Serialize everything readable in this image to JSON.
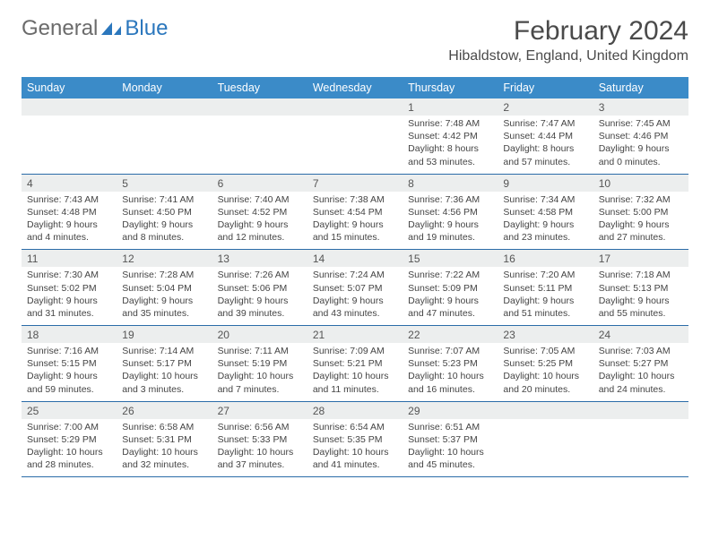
{
  "colors": {
    "header_bg": "#3b8bc8",
    "header_text": "#ffffff",
    "daynum_bg": "#eceeee",
    "border": "#2b6ca8",
    "logo_gray": "#6b6b6b",
    "logo_blue": "#2b77bd"
  },
  "logo": {
    "general": "General",
    "blue": "Blue"
  },
  "title": {
    "month": "February 2024",
    "location": "Hibaldstow, England, United Kingdom"
  },
  "daynames": [
    "Sunday",
    "Monday",
    "Tuesday",
    "Wednesday",
    "Thursday",
    "Friday",
    "Saturday"
  ],
  "weeks": [
    {
      "nums": [
        "",
        "",
        "",
        "",
        "1",
        "2",
        "3"
      ],
      "cells": [
        null,
        null,
        null,
        null,
        {
          "sunrise": "Sunrise: 7:48 AM",
          "sunset": "Sunset: 4:42 PM",
          "day1": "Daylight: 8 hours",
          "day2": "and 53 minutes."
        },
        {
          "sunrise": "Sunrise: 7:47 AM",
          "sunset": "Sunset: 4:44 PM",
          "day1": "Daylight: 8 hours",
          "day2": "and 57 minutes."
        },
        {
          "sunrise": "Sunrise: 7:45 AM",
          "sunset": "Sunset: 4:46 PM",
          "day1": "Daylight: 9 hours",
          "day2": "and 0 minutes."
        }
      ]
    },
    {
      "nums": [
        "4",
        "5",
        "6",
        "7",
        "8",
        "9",
        "10"
      ],
      "cells": [
        {
          "sunrise": "Sunrise: 7:43 AM",
          "sunset": "Sunset: 4:48 PM",
          "day1": "Daylight: 9 hours",
          "day2": "and 4 minutes."
        },
        {
          "sunrise": "Sunrise: 7:41 AM",
          "sunset": "Sunset: 4:50 PM",
          "day1": "Daylight: 9 hours",
          "day2": "and 8 minutes."
        },
        {
          "sunrise": "Sunrise: 7:40 AM",
          "sunset": "Sunset: 4:52 PM",
          "day1": "Daylight: 9 hours",
          "day2": "and 12 minutes."
        },
        {
          "sunrise": "Sunrise: 7:38 AM",
          "sunset": "Sunset: 4:54 PM",
          "day1": "Daylight: 9 hours",
          "day2": "and 15 minutes."
        },
        {
          "sunrise": "Sunrise: 7:36 AM",
          "sunset": "Sunset: 4:56 PM",
          "day1": "Daylight: 9 hours",
          "day2": "and 19 minutes."
        },
        {
          "sunrise": "Sunrise: 7:34 AM",
          "sunset": "Sunset: 4:58 PM",
          "day1": "Daylight: 9 hours",
          "day2": "and 23 minutes."
        },
        {
          "sunrise": "Sunrise: 7:32 AM",
          "sunset": "Sunset: 5:00 PM",
          "day1": "Daylight: 9 hours",
          "day2": "and 27 minutes."
        }
      ]
    },
    {
      "nums": [
        "11",
        "12",
        "13",
        "14",
        "15",
        "16",
        "17"
      ],
      "cells": [
        {
          "sunrise": "Sunrise: 7:30 AM",
          "sunset": "Sunset: 5:02 PM",
          "day1": "Daylight: 9 hours",
          "day2": "and 31 minutes."
        },
        {
          "sunrise": "Sunrise: 7:28 AM",
          "sunset": "Sunset: 5:04 PM",
          "day1": "Daylight: 9 hours",
          "day2": "and 35 minutes."
        },
        {
          "sunrise": "Sunrise: 7:26 AM",
          "sunset": "Sunset: 5:06 PM",
          "day1": "Daylight: 9 hours",
          "day2": "and 39 minutes."
        },
        {
          "sunrise": "Sunrise: 7:24 AM",
          "sunset": "Sunset: 5:07 PM",
          "day1": "Daylight: 9 hours",
          "day2": "and 43 minutes."
        },
        {
          "sunrise": "Sunrise: 7:22 AM",
          "sunset": "Sunset: 5:09 PM",
          "day1": "Daylight: 9 hours",
          "day2": "and 47 minutes."
        },
        {
          "sunrise": "Sunrise: 7:20 AM",
          "sunset": "Sunset: 5:11 PM",
          "day1": "Daylight: 9 hours",
          "day2": "and 51 minutes."
        },
        {
          "sunrise": "Sunrise: 7:18 AM",
          "sunset": "Sunset: 5:13 PM",
          "day1": "Daylight: 9 hours",
          "day2": "and 55 minutes."
        }
      ]
    },
    {
      "nums": [
        "18",
        "19",
        "20",
        "21",
        "22",
        "23",
        "24"
      ],
      "cells": [
        {
          "sunrise": "Sunrise: 7:16 AM",
          "sunset": "Sunset: 5:15 PM",
          "day1": "Daylight: 9 hours",
          "day2": "and 59 minutes."
        },
        {
          "sunrise": "Sunrise: 7:14 AM",
          "sunset": "Sunset: 5:17 PM",
          "day1": "Daylight: 10 hours",
          "day2": "and 3 minutes."
        },
        {
          "sunrise": "Sunrise: 7:11 AM",
          "sunset": "Sunset: 5:19 PM",
          "day1": "Daylight: 10 hours",
          "day2": "and 7 minutes."
        },
        {
          "sunrise": "Sunrise: 7:09 AM",
          "sunset": "Sunset: 5:21 PM",
          "day1": "Daylight: 10 hours",
          "day2": "and 11 minutes."
        },
        {
          "sunrise": "Sunrise: 7:07 AM",
          "sunset": "Sunset: 5:23 PM",
          "day1": "Daylight: 10 hours",
          "day2": "and 16 minutes."
        },
        {
          "sunrise": "Sunrise: 7:05 AM",
          "sunset": "Sunset: 5:25 PM",
          "day1": "Daylight: 10 hours",
          "day2": "and 20 minutes."
        },
        {
          "sunrise": "Sunrise: 7:03 AM",
          "sunset": "Sunset: 5:27 PM",
          "day1": "Daylight: 10 hours",
          "day2": "and 24 minutes."
        }
      ]
    },
    {
      "nums": [
        "25",
        "26",
        "27",
        "28",
        "29",
        "",
        ""
      ],
      "cells": [
        {
          "sunrise": "Sunrise: 7:00 AM",
          "sunset": "Sunset: 5:29 PM",
          "day1": "Daylight: 10 hours",
          "day2": "and 28 minutes."
        },
        {
          "sunrise": "Sunrise: 6:58 AM",
          "sunset": "Sunset: 5:31 PM",
          "day1": "Daylight: 10 hours",
          "day2": "and 32 minutes."
        },
        {
          "sunrise": "Sunrise: 6:56 AM",
          "sunset": "Sunset: 5:33 PM",
          "day1": "Daylight: 10 hours",
          "day2": "and 37 minutes."
        },
        {
          "sunrise": "Sunrise: 6:54 AM",
          "sunset": "Sunset: 5:35 PM",
          "day1": "Daylight: 10 hours",
          "day2": "and 41 minutes."
        },
        {
          "sunrise": "Sunrise: 6:51 AM",
          "sunset": "Sunset: 5:37 PM",
          "day1": "Daylight: 10 hours",
          "day2": "and 45 minutes."
        },
        null,
        null
      ]
    }
  ]
}
